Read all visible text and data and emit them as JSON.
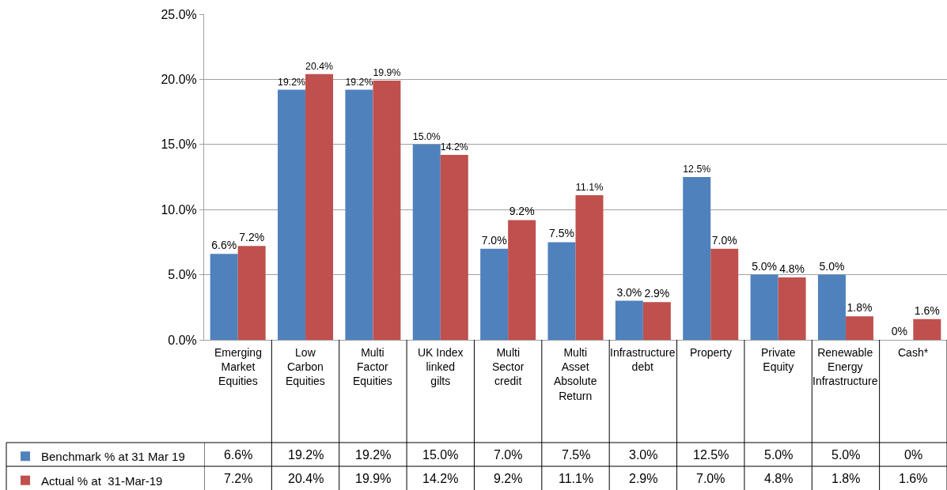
{
  "chart_data": {
    "type": "bar",
    "categories": [
      "Emerging Market Equities",
      "Low Carbon Equities",
      "Multi Factor Equities",
      "UK Index linked gilts",
      "Multi Sector credit",
      "Multi Asset Absolute Return",
      "Infrastructure debt",
      "Property",
      "Private Equity",
      "Renewable Energy Infrastructure",
      "Cash*"
    ],
    "series": [
      {
        "name": "Benchmark % at 31 Mar 19",
        "color": "#4f81bd",
        "values": [
          6.6,
          19.2,
          19.2,
          15.0,
          7.0,
          7.5,
          3.0,
          12.5,
          5.0,
          5.0,
          0
        ],
        "value_labels": [
          "6.6%",
          "19.2%",
          "19.2%",
          "15.0%",
          "7.0%",
          "7.5%",
          "3.0%",
          "12.5%",
          "5.0%",
          "5.0%",
          "0%"
        ]
      },
      {
        "name": "Actual % at  31-Mar-19",
        "color": "#c0504d",
        "values": [
          7.2,
          20.4,
          19.9,
          14.2,
          9.2,
          11.1,
          2.9,
          7.0,
          4.8,
          1.8,
          1.6
        ],
        "value_labels": [
          "7.2%",
          "20.4%",
          "19.9%",
          "14.2%",
          "9.2%",
          "11.1%",
          "2.9%",
          "7.0%",
          "4.8%",
          "1.8%",
          "1.6%"
        ]
      }
    ],
    "ylim": [
      0,
      25
    ],
    "yticks": [
      {
        "value": 0,
        "label": "0.0%"
      },
      {
        "value": 5,
        "label": "5.0%"
      },
      {
        "value": 10,
        "label": "10.0%"
      },
      {
        "value": 15,
        "label": "15.0%"
      },
      {
        "value": 20,
        "label": "20.0%"
      },
      {
        "value": 25,
        "label": "25.0%"
      }
    ],
    "grid": "y",
    "legend": "bottom left"
  }
}
